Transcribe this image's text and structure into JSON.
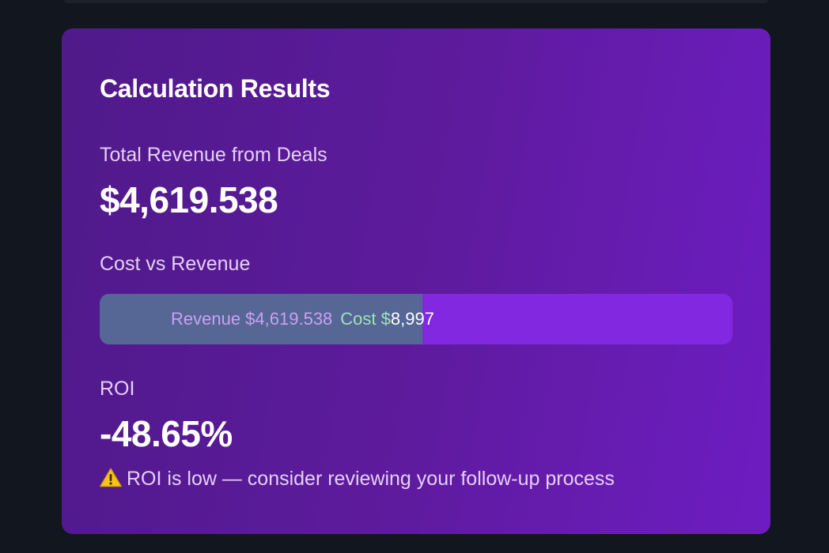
{
  "results": {
    "title": "Calculation Results",
    "revenue_label": "Total Revenue from Deals",
    "revenue_value": "$4,619.538",
    "cost_vs_revenue_label": "Cost vs Revenue",
    "bar": {
      "revenue_label": "Revenue $4,619.538",
      "cost_prefix": "Cost $",
      "cost_amount": "8,997",
      "revenue_fraction": 0.51,
      "revenue_color": "#566695",
      "cost_color": "#8128e0"
    },
    "roi_label": "ROI",
    "roi_value": "-48.65%",
    "warning_icon": "warning-icon",
    "warning_text": "ROI is low — consider reviewing your follow-up process"
  }
}
